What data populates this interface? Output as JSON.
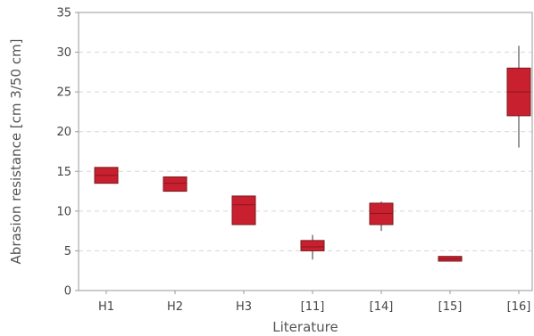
{
  "chart_data": {
    "type": "box",
    "xlabel": "Literature",
    "ylabel": "Abrasion resistance [cm 3/50 cm]",
    "ylim": [
      0,
      35
    ],
    "yticks": [
      0,
      5,
      10,
      15,
      20,
      25,
      30,
      35
    ],
    "grid": "horizontal dashed",
    "box_color": "#c8202e",
    "categories": [
      "H1",
      "H2",
      "H3",
      "[11]",
      "[14]",
      "[15]",
      "[16]"
    ],
    "boxes": [
      {
        "label": "H1",
        "min": 13.5,
        "q1": 13.5,
        "median": 14.5,
        "q3": 15.5,
        "max": 15.5
      },
      {
        "label": "H2",
        "min": 12.5,
        "q1": 12.5,
        "median": 13.5,
        "q3": 14.3,
        "max": 14.3
      },
      {
        "label": "H3",
        "min": 8.3,
        "q1": 8.3,
        "median": 10.8,
        "q3": 11.9,
        "max": 11.9
      },
      {
        "label": "[11]",
        "min": 3.9,
        "q1": 5.0,
        "median": 5.5,
        "q3": 6.3,
        "max": 7.0
      },
      {
        "label": "[14]",
        "min": 7.5,
        "q1": 8.3,
        "median": 9.7,
        "q3": 11.0,
        "max": 11.2
      },
      {
        "label": "[15]",
        "min": 3.7,
        "q1": 3.7,
        "median": 4.0,
        "q3": 4.3,
        "max": 4.3
      },
      {
        "label": "[16]",
        "min": 18.0,
        "q1": 22.0,
        "median": 25.0,
        "q3": 28.0,
        "max": 30.8
      }
    ]
  }
}
